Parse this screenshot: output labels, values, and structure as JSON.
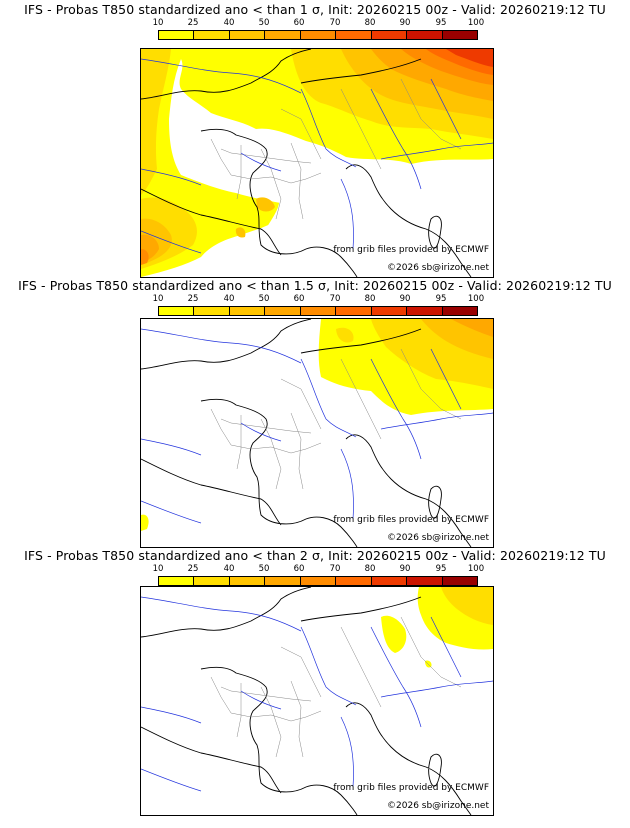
{
  "colors": {
    "c10": "#ffff00",
    "c25": "#ffde00",
    "c40": "#ffc400",
    "c50": "#ffa800",
    "c60": "#ff8c00",
    "c70": "#ff6a00",
    "c80": "#ee3a00",
    "c90": "#cc1300",
    "c95": "#990000",
    "c100": "#4d0000",
    "coast": "#000000",
    "rivers": "#2233dd",
    "borders": "#888888"
  },
  "legend": {
    "labels": [
      "10",
      "25",
      "40",
      "50",
      "60",
      "70",
      "80",
      "90",
      "95",
      "100"
    ]
  },
  "panels": [
    {
      "title": "IFS - Probas T850  standardized ano < than 1 σ, Init: 20260215 00z - Valid: 20260219:12 TU",
      "source_text": "from grib files provided by ECMWF",
      "copyright_text": "©2026 sb@irizone.net"
    },
    {
      "title": "IFS - Probas T850  standardized ano < than 1.5 σ, Init: 20260215 00z - Valid: 20260219:12 TU",
      "source_text": "from grib files provided by ECMWF",
      "copyright_text": "©2026 sb@irizone.net"
    },
    {
      "title": "IFS - Probas T850  standardized ano < than 2 σ, Init: 20260215 00z - Valid: 20260219:12 TU",
      "source_text": "from grib files provided by ECMWF",
      "copyright_text": "©2026 sb@irizone.net"
    }
  ]
}
